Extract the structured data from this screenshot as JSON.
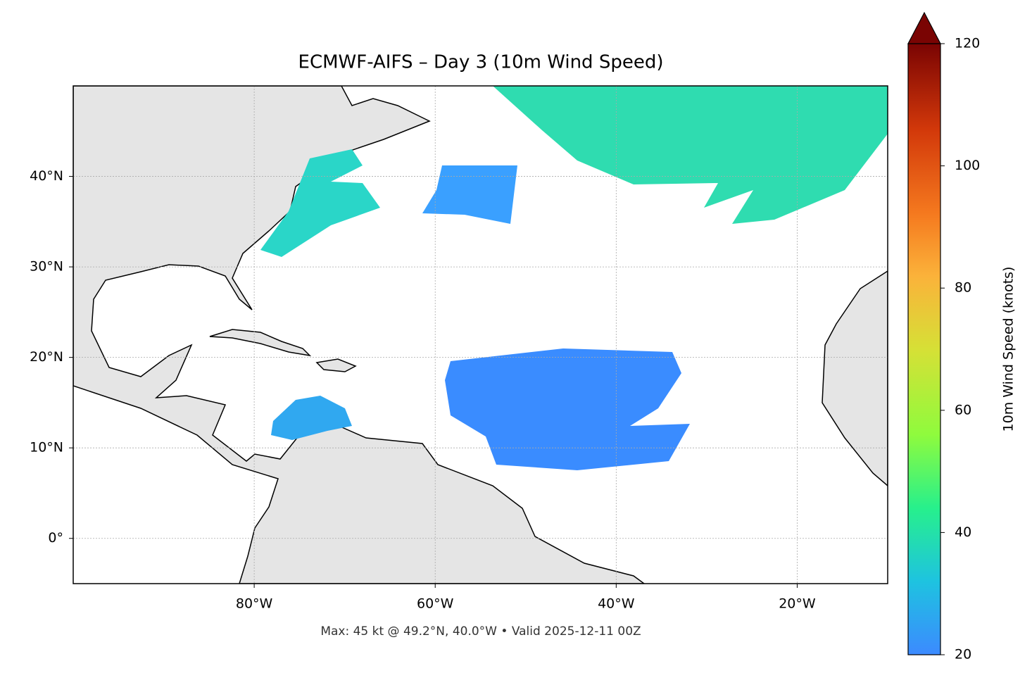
{
  "chart_data": {
    "type": "map",
    "title": "ECMWF-AIFS – Day 3 (10m Wind Speed)",
    "footnote": "Max: 45 kt @ 49.2°N, 40.0°W • Valid 2025-12-11 00Z",
    "xlim": [
      -100,
      -10
    ],
    "ylim": [
      -5,
      50
    ],
    "xticks": [
      {
        "value": -80,
        "label": "80°W"
      },
      {
        "value": -60,
        "label": "60°W"
      },
      {
        "value": -40,
        "label": "40°W"
      },
      {
        "value": -20,
        "label": "20°W"
      }
    ],
    "yticks": [
      {
        "value": 0,
        "label": "0°"
      },
      {
        "value": 10,
        "label": "10°N"
      },
      {
        "value": 20,
        "label": "20°N"
      },
      {
        "value": 30,
        "label": "30°N"
      },
      {
        "value": 40,
        "label": "40°N"
      }
    ],
    "grid": true,
    "colorbar": {
      "label": "10m Wind Speed (knots)",
      "lim": [
        20,
        120
      ],
      "ticks": [
        20,
        40,
        60,
        80,
        100,
        120
      ],
      "extend": "max"
    }
  }
}
